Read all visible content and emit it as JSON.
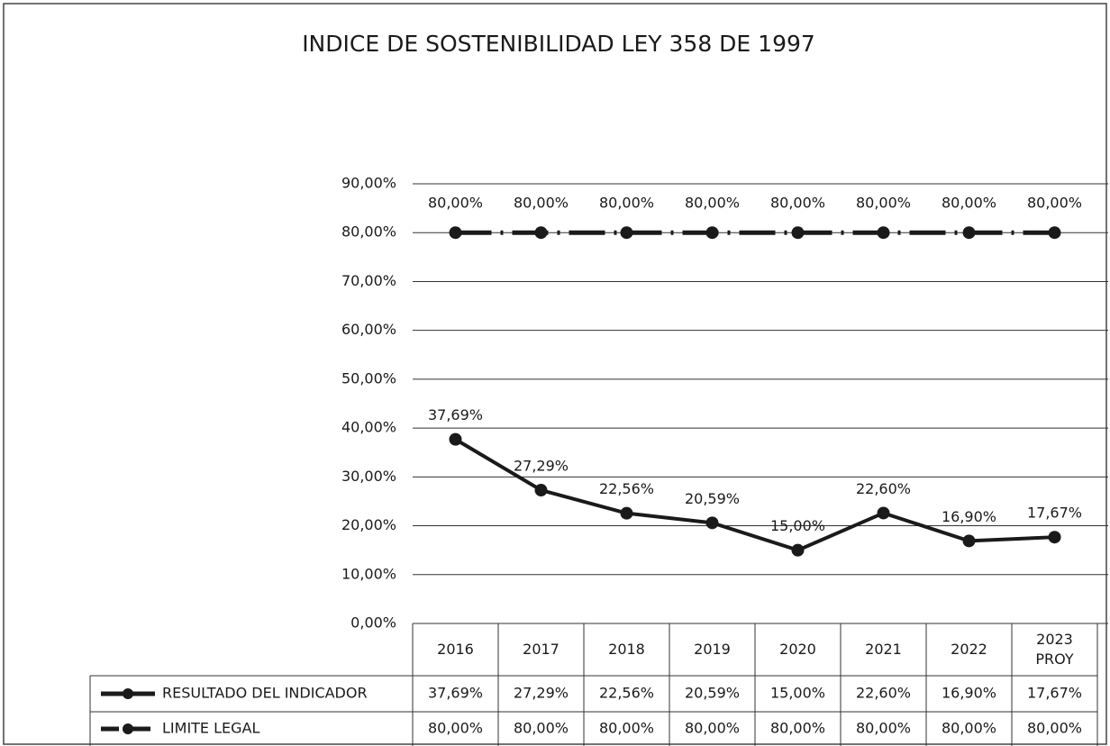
{
  "chart_data": {
    "type": "line",
    "title": "INDICE DE SOSTENIBILIDAD LEY 358 DE 1997",
    "categories": [
      "2016",
      "2017",
      "2018",
      "2019",
      "2020",
      "2021",
      "2022",
      "2023 PROY"
    ],
    "series": [
      {
        "name": "RESULTADO DEL INDICADOR",
        "color": "#1a1a1a",
        "values": [
          37.69,
          27.29,
          22.56,
          20.59,
          15.0,
          22.6,
          16.9,
          17.67
        ],
        "value_labels": [
          "37,69%",
          "27,29%",
          "22,56%",
          "20,59%",
          "15,00%",
          "22,60%",
          "16,90%",
          "17,67%"
        ]
      },
      {
        "name": "LIMITE LEGAL",
        "color": "#1a1a1a",
        "values": [
          80,
          80,
          80,
          80,
          80,
          80,
          80,
          80
        ],
        "value_labels": [
          "80,00%",
          "80,00%",
          "80,00%",
          "80,00%",
          "80,00%",
          "80,00%",
          "80,00%",
          "80,00%"
        ]
      }
    ],
    "ylim": [
      0,
      90
    ],
    "yticks": [
      {
        "value": 0,
        "label": "0,00%"
      },
      {
        "value": 10,
        "label": "10,00%"
      },
      {
        "value": 20,
        "label": "20,00%"
      },
      {
        "value": 30,
        "label": "30,00%"
      },
      {
        "value": 40,
        "label": "40,00%"
      },
      {
        "value": 50,
        "label": "50,00%"
      },
      {
        "value": 60,
        "label": "60,00%"
      },
      {
        "value": 70,
        "label": "70,00%"
      },
      {
        "value": 80,
        "label": "80,00%"
      },
      {
        "value": 90,
        "label": "90,00%"
      }
    ],
    "grid": true
  }
}
